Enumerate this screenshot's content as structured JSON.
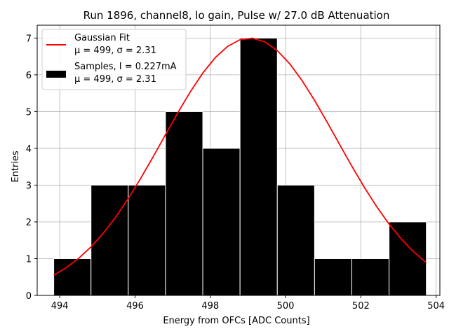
{
  "chart_data": {
    "type": "bar",
    "title": "Run 1896, channel8, lo gain, Pulse w/ 27.0 dB Attenuation",
    "xlabel": "Energy from OFCs [ADC Counts]",
    "ylabel": "Entries",
    "xlim": [
      493.4,
      504.1
    ],
    "ylim": [
      0,
      7.35
    ],
    "grid": true,
    "x_ticks": [
      494,
      496,
      498,
      500,
      502,
      504
    ],
    "y_ticks": [
      0,
      1,
      2,
      3,
      4,
      5,
      6,
      7
    ],
    "histogram": {
      "name": "Samples, I = 0.227mA",
      "stats": "μ = 499, σ = 2.31",
      "bin_edges": [
        493.84,
        494.83,
        495.82,
        496.81,
        497.8,
        498.79,
        499.78,
        500.77,
        501.76,
        502.75,
        503.74
      ],
      "counts": [
        1,
        3,
        3,
        5,
        4,
        7,
        3,
        1,
        1,
        2
      ],
      "color": "#000000"
    },
    "fit": {
      "name": "Gaussian Fit",
      "stats": "μ = 499, σ = 2.31",
      "mu": 499.05,
      "sigma": 2.31,
      "amplitude": 7.0,
      "x_range": [
        493.84,
        503.74
      ],
      "color": "#ff0000"
    },
    "legend": {
      "position": "top-left",
      "fit_label": "Gaussian Fit",
      "fit_stats": "μ = 499, σ = 2.31",
      "hist_label": "Samples, I = 0.227mA",
      "hist_stats": "μ = 499, σ = 2.31"
    }
  }
}
